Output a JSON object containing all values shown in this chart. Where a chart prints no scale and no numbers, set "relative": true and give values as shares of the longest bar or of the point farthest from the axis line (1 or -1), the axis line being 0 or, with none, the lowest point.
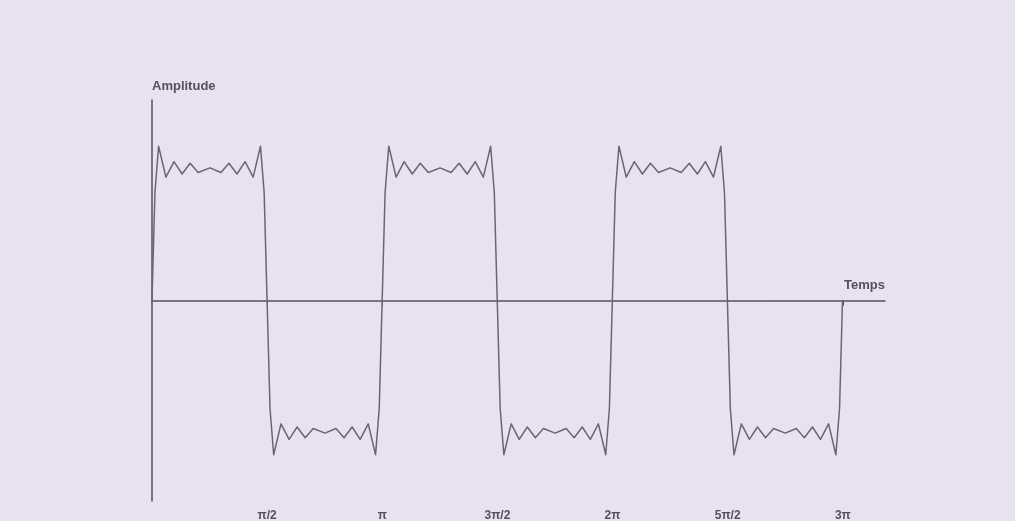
{
  "chart_data": {
    "type": "line",
    "xlabel": "Temps",
    "ylabel": "Amplitude",
    "relative": true,
    "tick_labels": "x",
    "grid": false,
    "marker": "none",
    "line_style": "solid",
    "xlim": [
      0,
      10
    ],
    "xticks": [
      {
        "value": 1.5708,
        "label": "π/2"
      },
      {
        "value": 3.1416,
        "label": "π"
      },
      {
        "value": 4.7124,
        "label": "3π/2"
      },
      {
        "value": 6.2832,
        "label": "2π"
      },
      {
        "value": 7.854,
        "label": "5π/2"
      },
      {
        "value": 9.4248,
        "label": "3π"
      }
    ],
    "series": [
      {
        "color": "#6b6474",
        "x": [
          0,
          0.04,
          0.09,
          0.19,
          0.3,
          0.41,
          0.52,
          0.63,
          0.79,
          0.94,
          1.05,
          1.16,
          1.27,
          1.38,
          1.48,
          1.53,
          1.57,
          1.61,
          1.66,
          1.76,
          1.87,
          1.98,
          2.09,
          2.2,
          2.36,
          2.51,
          2.62,
          2.73,
          2.84,
          2.95,
          3.05,
          3.1,
          3.14,
          3.18,
          3.23,
          3.33,
          3.44,
          3.55,
          3.66,
          3.77,
          3.93,
          4.08,
          4.19,
          4.3,
          4.41,
          4.52,
          4.62,
          4.67,
          4.71,
          4.75,
          4.8,
          4.9,
          5.01,
          5.12,
          5.23,
          5.34,
          5.5,
          5.65,
          5.76,
          5.87,
          5.98,
          6.09,
          6.19,
          6.24,
          6.28,
          6.32,
          6.37,
          6.47,
          6.58,
          6.69,
          6.8,
          6.91,
          7.07,
          7.22,
          7.33,
          7.44,
          7.55,
          7.66,
          7.76,
          7.81,
          7.85,
          7.89,
          7.94,
          8.04,
          8.15,
          8.26,
          8.37,
          8.48,
          8.64,
          8.79,
          8.9,
          9.01,
          9.12,
          9.23,
          9.33,
          9.38,
          9.42
        ],
        "values": [
          0,
          0.7,
          1,
          0.8,
          0.9,
          0.82,
          0.89,
          0.83,
          0.86,
          0.83,
          0.89,
          0.82,
          0.9,
          0.8,
          1,
          0.7,
          0,
          -0.7,
          -1,
          -0.8,
          -0.9,
          -0.82,
          -0.89,
          -0.83,
          -0.86,
          -0.83,
          -0.89,
          -0.82,
          -0.9,
          -0.8,
          -1,
          -0.7,
          0,
          0.7,
          1,
          0.8,
          0.9,
          0.82,
          0.89,
          0.83,
          0.86,
          0.83,
          0.89,
          0.82,
          0.9,
          0.8,
          1,
          0.7,
          0,
          -0.7,
          -1,
          -0.8,
          -0.9,
          -0.82,
          -0.89,
          -0.83,
          -0.86,
          -0.83,
          -0.89,
          -0.82,
          -0.9,
          -0.8,
          -1,
          -0.7,
          0,
          0.7,
          1,
          0.8,
          0.9,
          0.82,
          0.89,
          0.83,
          0.86,
          0.83,
          0.89,
          0.82,
          0.9,
          0.8,
          1,
          0.7,
          0,
          -0.7,
          -1,
          -0.8,
          -0.9,
          -0.82,
          -0.89,
          -0.83,
          -0.86,
          -0.83,
          -0.89,
          -0.82,
          -0.9,
          -0.8,
          -1,
          -0.7,
          0
        ]
      }
    ]
  }
}
